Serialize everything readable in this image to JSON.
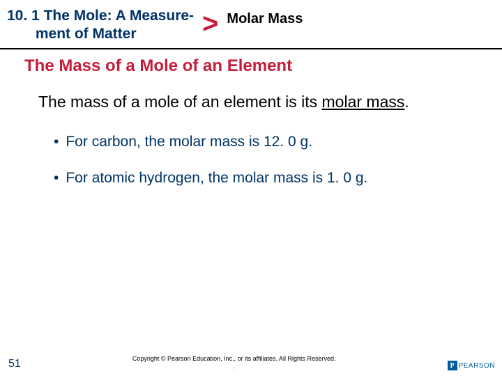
{
  "header": {
    "section_number": "10. 1",
    "section_title_line1": "The Mole: A Measure-",
    "section_title_line2": "ment of Matter",
    "chevron": ">",
    "topic": "Molar Mass"
  },
  "content": {
    "subtitle": "The Mass of a Mole of an Element",
    "body_prefix": "The mass of a mole of an element is its ",
    "body_underlined": "molar mass",
    "body_suffix": ".",
    "bullets": [
      "For carbon, the molar mass is 12. 0 g.",
      "For atomic hydrogen, the molar mass is 1. 0 g."
    ]
  },
  "footer": {
    "page_number": "51",
    "copyright_line1": "Copyright © Pearson Education, Inc., or its affiliates. All Rights Reserved.",
    "copyright_line2": ".",
    "logo_letter": "P",
    "logo_text": "PEARSON"
  },
  "colors": {
    "navy": "#003366",
    "red": "#c41e3a",
    "pearson_blue": "#005a9c"
  }
}
